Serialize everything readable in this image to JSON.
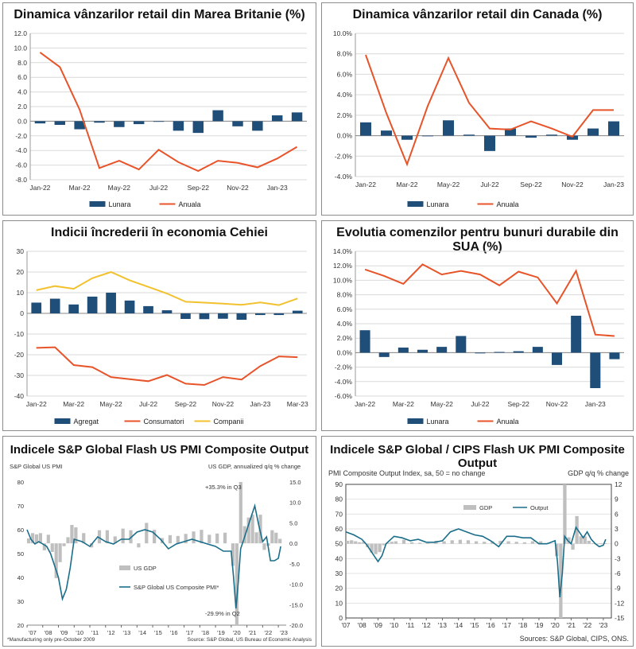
{
  "colors": {
    "bar": "#1f4e79",
    "orange": "#e8542a",
    "yellow": "#f2c12e",
    "pmi_line": "#1a6e8a",
    "gdp_bar": "#bfbfbf",
    "grid": "#d9d9d9"
  },
  "chart_data": [
    {
      "type": "bar",
      "title": "Dinamica vânzarilor retail din Marea Britanie (%)",
      "categories": [
        "Jan-22",
        "Feb-22",
        "Mar-22",
        "Apr-22",
        "May-22",
        "Jun-22",
        "Jul-22",
        "Aug-22",
        "Sep-22",
        "Oct-22",
        "Nov-22",
        "Dec-22",
        "Jan-23",
        "Feb-23"
      ],
      "x_tick_labels": [
        "Jan-22",
        "Mar-22",
        "May-22",
        "Jul-22",
        "Sep-22",
        "Nov-22",
        "Jan-23"
      ],
      "y_tick_labels": [
        "-8.0",
        "-6.0",
        "-4.0",
        "-2.0",
        "0.0",
        "2.0",
        "4.0",
        "6.0",
        "8.0",
        "10.0",
        "12.0"
      ],
      "ylim": [
        -8,
        12
      ],
      "series": [
        {
          "name": "Lunara",
          "kind": "bar",
          "values": [
            -0.3,
            -0.5,
            -1.1,
            -0.2,
            -0.8,
            -0.4,
            0,
            -1.3,
            -1.6,
            1.5,
            -0.7,
            -1.3,
            0.8,
            1.2
          ]
        },
        {
          "name": "Anuala",
          "kind": "line",
          "values": [
            9.4,
            7.4,
            1.6,
            -6.4,
            -5.4,
            -6.6,
            -3.9,
            -5.6,
            -6.8,
            -5.4,
            -5.7,
            -6.3,
            -5.1,
            -3.5
          ]
        }
      ]
    },
    {
      "type": "bar",
      "title": "Dinamica vânzarilor retail din Canada (%)",
      "categories": [
        "Jan-22",
        "Feb-22",
        "Mar-22",
        "Apr-22",
        "May-22",
        "Jun-22",
        "Jul-22",
        "Aug-22",
        "Sep-22",
        "Oct-22",
        "Nov-22",
        "Dec-22",
        "Jan-23"
      ],
      "x_tick_labels": [
        "Jan-22",
        "Mar-22",
        "May-22",
        "Jul-22",
        "Sep-22",
        "Nov-22",
        "Jan-23"
      ],
      "y_tick_labels": [
        "-4.0%",
        "-2.0%",
        "0.0%",
        "2.0%",
        "4.0%",
        "6.0%",
        "8.0%",
        "10.0%"
      ],
      "ylim": [
        -4,
        10
      ],
      "series": [
        {
          "name": "Lunara",
          "kind": "bar",
          "values": [
            1.3,
            0.5,
            -0.4,
            0,
            1.5,
            0.1,
            -1.5,
            0.7,
            -0.2,
            0.1,
            -0.4,
            0.7,
            1.4
          ]
        },
        {
          "name": "Anuala",
          "kind": "line",
          "values": [
            7.9,
            2.2,
            -2.8,
            2.9,
            7.6,
            3.2,
            0.7,
            0.6,
            1.4,
            0.7,
            -0.1,
            2.5,
            2.5
          ]
        }
      ]
    },
    {
      "type": "bar",
      "title": "Indicii încrederii în economia Cehiei",
      "categories": [
        "Jan-22",
        "Feb-22",
        "Mar-22",
        "Apr-22",
        "May-22",
        "Jun-22",
        "Jul-22",
        "Aug-22",
        "Sep-22",
        "Oct-22",
        "Nov-22",
        "Dec-22",
        "Jan-23",
        "Feb-23",
        "Mar-23"
      ],
      "x_tick_labels": [
        "Jan-22",
        "Mar-22",
        "May-22",
        "Jul-22",
        "Sep-22",
        "Nov-22",
        "Jan-23",
        "Mar-23"
      ],
      "y_tick_labels": [
        "-40",
        "-30",
        "-20",
        "-10",
        "0",
        "10",
        "20",
        "30"
      ],
      "ylim": [
        -40,
        30
      ],
      "series": [
        {
          "name": "Agregat",
          "kind": "bar",
          "values": [
            5.2,
            7.1,
            4.3,
            8.1,
            10,
            6.2,
            3.5,
            1.5,
            -2.7,
            -2.8,
            -2.6,
            -3.1,
            -0.8,
            -0.8,
            1.3
          ]
        },
        {
          "name": "Consumatori",
          "kind": "line",
          "values": [
            -16.7,
            -16.4,
            -25,
            -26,
            -30.8,
            -31.8,
            -32.8,
            -29.8,
            -34,
            -34.6,
            -30.8,
            -32,
            -25.5,
            -20.8,
            -21.2
          ]
        },
        {
          "name": "Companii",
          "kind": "line",
          "values": [
            11.2,
            13.2,
            11.9,
            17,
            20,
            16,
            12.8,
            9.6,
            5.6,
            5.2,
            4.7,
            4.1,
            5.3,
            4,
            7.2
          ]
        }
      ]
    },
    {
      "type": "bar",
      "title": "Evolutia comenzilor pentru bunuri durabile din SUA (%)",
      "categories": [
        "Jan-22",
        "Feb-22",
        "Mar-22",
        "Apr-22",
        "May-22",
        "Jun-22",
        "Jul-22",
        "Aug-22",
        "Sep-22",
        "Oct-22",
        "Nov-22",
        "Dec-22",
        "Jan-23",
        "Feb-23"
      ],
      "x_tick_labels": [
        "Jan-22",
        "Mar-22",
        "May-22",
        "Jul-22",
        "Sep-22",
        "Nov-22",
        "Jan-23"
      ],
      "y_tick_labels": [
        "-6.0%",
        "-4.0%",
        "-2.0%",
        "0.0%",
        "2.0%",
        "4.0%",
        "6.0%",
        "8.0%",
        "10.0%",
        "12.0%",
        "14.0%"
      ],
      "ylim": [
        -6,
        14
      ],
      "series": [
        {
          "name": "Lunara",
          "kind": "bar",
          "values": [
            3.1,
            -0.6,
            0.7,
            0.4,
            0.8,
            2.3,
            -0.1,
            0.1,
            0.2,
            0.8,
            -1.7,
            5.1,
            -4.9,
            -0.9
          ]
        },
        {
          "name": "Anuala",
          "kind": "line",
          "values": [
            11.5,
            10.6,
            9.5,
            12.2,
            10.8,
            11.3,
            10.8,
            9.3,
            11.2,
            10.4,
            6.8,
            11.3,
            2.5,
            2.3
          ]
        }
      ]
    },
    {
      "type": "line",
      "title": "Indicele S&P Global Flash US PMI Composite Output",
      "left_axis_label": "S&P Global US PMI",
      "right_axis_label": "US GDP, annualized q/q % change",
      "x_tick_labels": [
        "'07",
        "'08",
        "'09",
        "'10",
        "'11",
        "'12",
        "'13",
        "'14",
        "'15",
        "'16",
        "'17",
        "'18",
        "'19",
        "'20",
        "'21",
        "'22",
        "'23"
      ],
      "left_ylim": [
        20,
        80
      ],
      "left_tick_labels": [
        "20",
        "30",
        "40",
        "50",
        "60",
        "70",
        "80"
      ],
      "right_ylim": [
        -20,
        15
      ],
      "right_tick_labels": [
        "-20.0",
        "-15.0",
        "-10.0",
        "-5.0",
        "0.0",
        "5.0",
        "10.0",
        "15.0"
      ],
      "annotations": [
        "+35.3% in Q3",
        "-29.9% in Q2"
      ],
      "footnote": "*Manufacturing only pre-October 2009",
      "source": "Source: S&P Global, US Bureau of Economic Analysis",
      "legend": [
        "US GDP",
        "S&P Global US Composite PMI*"
      ],
      "x_years": [
        2007,
        2007.25,
        2007.5,
        2007.75,
        2008,
        2008.25,
        2008.5,
        2008.75,
        2009,
        2009.25,
        2009.5,
        2009.75,
        2010,
        2010.5,
        2011,
        2011.5,
        2012,
        2012.5,
        2013,
        2013.5,
        2014,
        2014.5,
        2015,
        2015.5,
        2016,
        2016.5,
        2017,
        2017.5,
        2018,
        2018.5,
        2019,
        2019.5,
        2020,
        2020.15,
        2020.3,
        2020.45,
        2020.6,
        2020.8,
        2021,
        2021.25,
        2021.5,
        2021.75,
        2022,
        2022.25,
        2022.5,
        2022.75,
        2023,
        2023.15
      ],
      "pmi_values": [
        60,
        56,
        54,
        55,
        54,
        53,
        50,
        45,
        40,
        31,
        35,
        44,
        56,
        55,
        53,
        57,
        55,
        54,
        56,
        56,
        59,
        60,
        59,
        56,
        52,
        54,
        55,
        56,
        55,
        54,
        53,
        51,
        51,
        40,
        27,
        38,
        52,
        56,
        60,
        65,
        70,
        62,
        55,
        57,
        47,
        47,
        48,
        53
      ],
      "gdp_quarters": [
        2007,
        2007.25,
        2007.5,
        2007.75,
        2008,
        2008.25,
        2008.5,
        2008.75,
        2009,
        2009.25,
        2009.5,
        2009.75,
        2010,
        2010.5,
        2011,
        2011.5,
        2012,
        2012.5,
        2013,
        2013.5,
        2014,
        2014.5,
        2015,
        2015.5,
        2016,
        2016.5,
        2017,
        2017.5,
        2018,
        2018.5,
        2019,
        2019.5,
        2020,
        2020.25,
        2020.5,
        2020.75,
        2021,
        2021.25,
        2021.5,
        2021.75,
        2022,
        2022.25,
        2022.5,
        2022.75,
        2023
      ],
      "gdp_values": [
        1.2,
        2.5,
        2.2,
        2.5,
        -1.7,
        2.1,
        -2.1,
        -8.5,
        -4.6,
        -0.7,
        1.5,
        4.5,
        3.9,
        2.5,
        -1,
        3.2,
        3.2,
        1.7,
        3.6,
        3.2,
        -1,
        5,
        3.3,
        1.3,
        2,
        1.8,
        2.3,
        2.9,
        3.3,
        2.1,
        2.4,
        2.6,
        -5.5,
        -29.9,
        35.3,
        4.2,
        6.3,
        7,
        2.7,
        7,
        -1.6,
        -0.6,
        3.2,
        2.6,
        1.1
      ]
    },
    {
      "type": "line",
      "title": "Indicele S&P Global / CIPS Flash UK PMI Composite Output",
      "left_axis_label": "PMI Composite Output Index, sa, 50 = no change",
      "right_axis_label": "GDP q/q % change",
      "x_tick_labels": [
        "'07",
        "'08",
        "'09",
        "'10",
        "'11",
        "'12",
        "'13",
        "'14",
        "'15",
        "'16",
        "'17",
        "'18",
        "'19",
        "'20",
        "'21",
        "'22",
        "'23"
      ],
      "left_ylim": [
        0,
        90
      ],
      "left_tick_labels": [
        "0",
        "10",
        "20",
        "30",
        "40",
        "50",
        "60",
        "70",
        "80",
        "90"
      ],
      "right_ylim": [
        -15,
        12
      ],
      "right_tick_labels": [
        "-15",
        "-12",
        "-9",
        "-6",
        "-3",
        "0",
        "3",
        "6",
        "9",
        "12"
      ],
      "source": "Sources: S&P Global, CIPS, ONS.",
      "legend": [
        "GDP",
        "Output"
      ],
      "x_years": [
        2007,
        2007.5,
        2008,
        2008.25,
        2008.5,
        2008.75,
        2009,
        2009.25,
        2009.5,
        2010,
        2010.5,
        2011,
        2011.5,
        2012,
        2012.5,
        2013,
        2013.5,
        2014,
        2014.5,
        2015,
        2015.5,
        2016,
        2016.5,
        2017,
        2017.5,
        2018,
        2018.5,
        2019,
        2019.5,
        2020,
        2020.15,
        2020.3,
        2020.45,
        2020.6,
        2020.8,
        2021,
        2021.3,
        2021.5,
        2021.75,
        2022,
        2022.25,
        2022.5,
        2022.75,
        2023,
        2023.15
      ],
      "pmi_values": [
        58,
        56,
        53,
        50,
        46,
        42,
        38,
        42,
        50,
        55,
        54,
        52,
        53,
        51,
        51,
        52,
        58,
        60,
        58,
        56,
        55,
        52,
        48,
        55,
        55,
        54,
        54,
        50,
        50,
        52,
        38,
        14,
        30,
        55,
        52,
        50,
        61,
        58,
        54,
        58,
        53,
        50,
        48,
        49,
        53
      ],
      "gdp_quarters": [
        2007,
        2007.25,
        2007.5,
        2007.75,
        2008,
        2008.25,
        2008.5,
        2008.75,
        2009,
        2009.25,
        2009.5,
        2009.75,
        2010,
        2010.5,
        2011,
        2011.5,
        2012,
        2012.5,
        2013,
        2013.5,
        2014,
        2014.5,
        2015,
        2015.5,
        2016,
        2016.5,
        2017,
        2017.5,
        2018,
        2018.5,
        2019,
        2019.5,
        2020,
        2020.25,
        2020.5,
        2020.75,
        2021,
        2021.25,
        2021.5,
        2021.75,
        2022,
        2022.25,
        2022.5,
        2022.75,
        2023
      ],
      "gdp_values": [
        0.6,
        0.7,
        0.5,
        0.3,
        0.4,
        -0.7,
        -1.8,
        -2.1,
        -1.7,
        -0.3,
        0.2,
        0.4,
        0.5,
        0.8,
        0.3,
        0.2,
        0.1,
        0.6,
        0.5,
        0.7,
        0.8,
        0.7,
        0.5,
        0.4,
        0.5,
        0.6,
        0.5,
        0.4,
        0.3,
        0.5,
        0.5,
        0.2,
        -2.5,
        -21,
        16.5,
        1.3,
        -1.2,
        5.6,
        1.5,
        1.5,
        0.6,
        0.1,
        -0.1,
        0.1,
        0.1
      ]
    }
  ]
}
